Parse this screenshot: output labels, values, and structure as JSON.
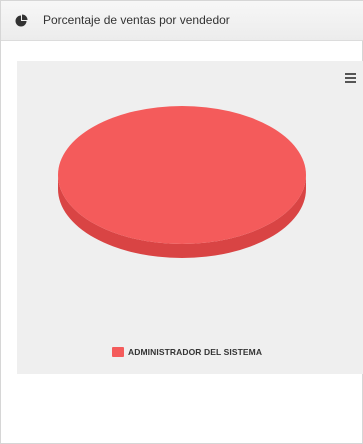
{
  "panel": {
    "title": "Porcentaje de ventas por vendedor",
    "icon": "pie-chart-icon"
  },
  "chart_menu": {
    "icon": "hamburger-menu-icon"
  },
  "colors": {
    "slice_top": "#f45b5b",
    "slice_side": "#d94444",
    "chart_background": "#efefef"
  },
  "chart_data": {
    "type": "pie",
    "title": "",
    "categories": [
      "ADMINISTRADOR DEL SISTEMA"
    ],
    "values": [
      100
    ],
    "legend": {
      "placement": "bottom-center",
      "entries": [
        "ADMINISTRADOR DEL SISTEMA"
      ]
    },
    "three_d": true
  }
}
